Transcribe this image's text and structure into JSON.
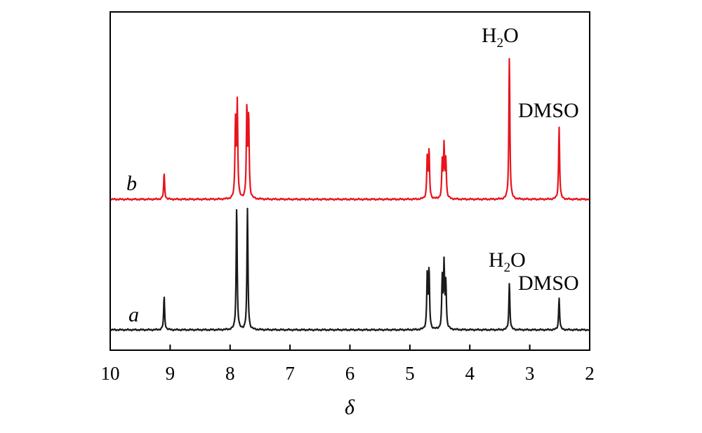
{
  "chart_data": {
    "type": "line",
    "xlabel": "δ",
    "xlim": [
      10,
      2
    ],
    "x_reversed": true,
    "x_ticks": [
      10,
      9,
      8,
      7,
      6,
      5,
      4,
      3,
      2
    ],
    "y_ticks": [],
    "grid": false,
    "series": [
      {
        "name": "a",
        "color": "#1a1a1a",
        "peaks": [
          {
            "x": 9.1,
            "height": 0.27
          },
          {
            "x": 7.89,
            "height": 1.0
          },
          {
            "x": 7.71,
            "height": 0.98
          },
          {
            "x": 4.71,
            "height": 0.45
          },
          {
            "x": 4.68,
            "height": 0.47
          },
          {
            "x": 4.46,
            "height": 0.4
          },
          {
            "x": 4.43,
            "height": 0.51
          },
          {
            "x": 4.4,
            "height": 0.37
          },
          {
            "x": 3.34,
            "height": 0.38
          },
          {
            "x": 2.51,
            "height": 0.26
          }
        ],
        "annotations": [
          {
            "x": 3.34,
            "formula": {
              "base": "H",
              "sub": "2",
              "rest": "O"
            }
          },
          {
            "x": 2.51,
            "text": "DMSO"
          }
        ]
      },
      {
        "name": "b",
        "color": "#e8141c",
        "peaks": [
          {
            "x": 9.1,
            "height": 0.2
          },
          {
            "x": 7.91,
            "height": 0.6
          },
          {
            "x": 7.88,
            "height": 0.74
          },
          {
            "x": 7.72,
            "height": 0.7
          },
          {
            "x": 7.69,
            "height": 0.64
          },
          {
            "x": 4.71,
            "height": 0.33
          },
          {
            "x": 4.68,
            "height": 0.37
          },
          {
            "x": 4.46,
            "height": 0.28
          },
          {
            "x": 4.43,
            "height": 0.4
          },
          {
            "x": 4.4,
            "height": 0.3
          },
          {
            "x": 3.34,
            "height": 1.12
          },
          {
            "x": 2.51,
            "height": 0.57
          }
        ],
        "annotations": [
          {
            "x": 3.34,
            "formula": {
              "base": "H",
              "sub": "2",
              "rest": "O"
            }
          },
          {
            "x": 2.51,
            "text": "DMSO"
          }
        ]
      }
    ]
  }
}
